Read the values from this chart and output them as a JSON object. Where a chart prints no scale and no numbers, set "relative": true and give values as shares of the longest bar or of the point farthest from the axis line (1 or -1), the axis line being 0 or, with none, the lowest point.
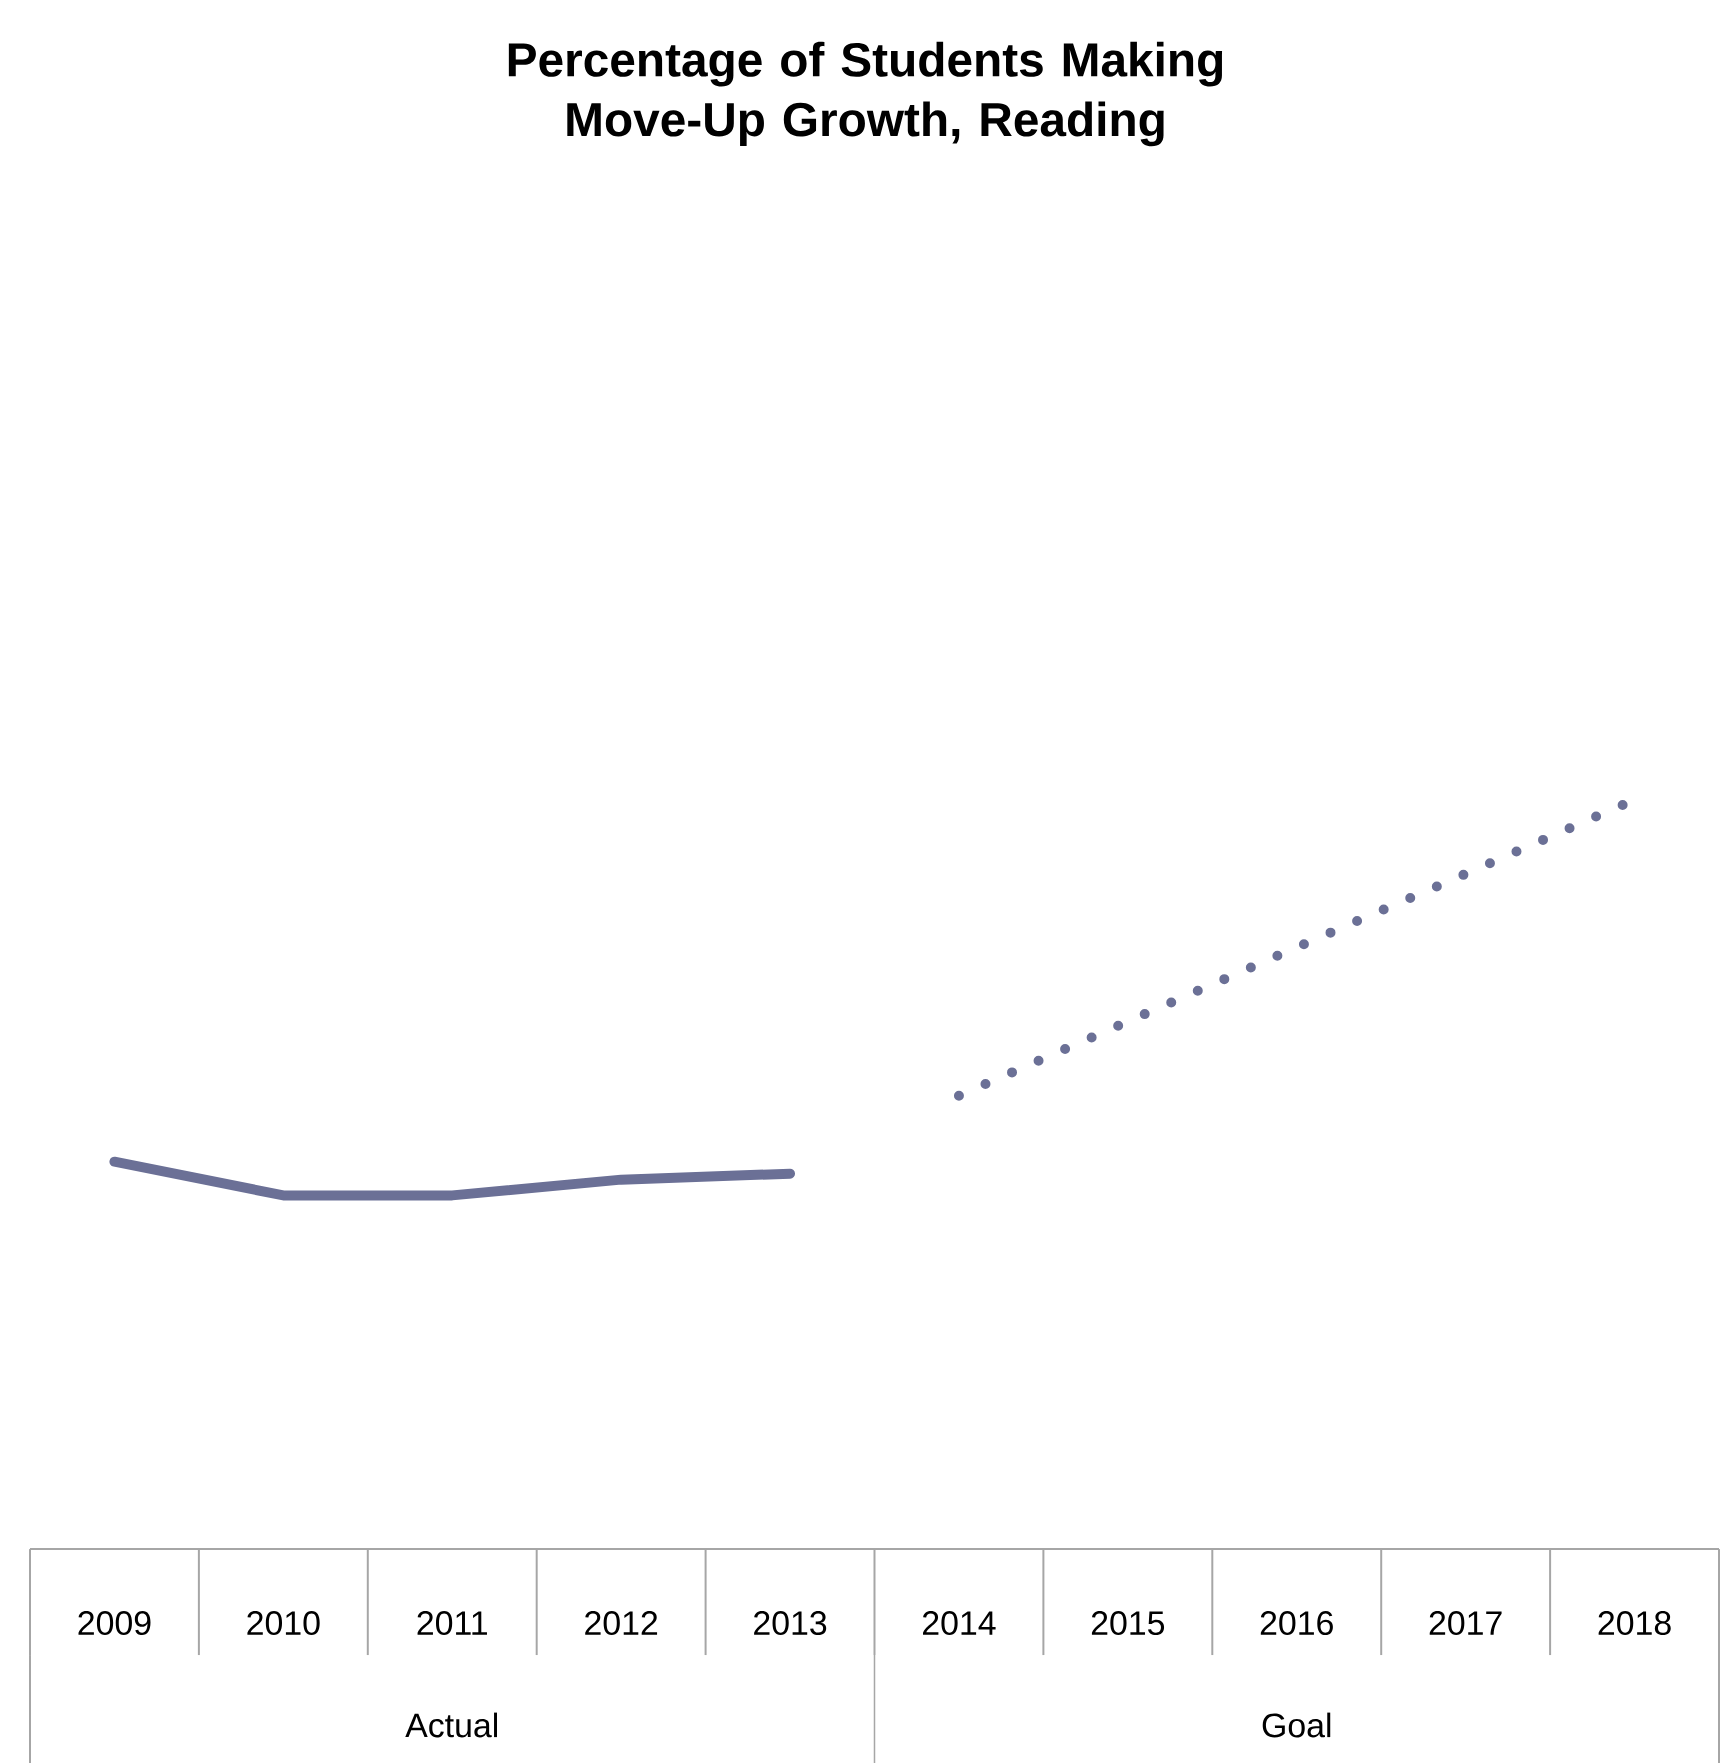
{
  "chart_data": {
    "type": "line",
    "title": "Percentage of Students Making Move-Up Growth, Reading",
    "relative": true,
    "categories": [
      "2009",
      "2010",
      "2011",
      "2012",
      "2013",
      "2014",
      "2015",
      "2016",
      "2017",
      "2018"
    ],
    "series": [
      {
        "color": "#6b7096",
        "line_style": "solid",
        "values": [
          0.517,
          0.472,
          0.472,
          0.493,
          0.501,
          null,
          null,
          null,
          null,
          null
        ]
      },
      {
        "color": "#6b7096",
        "line_style": "dotted",
        "values": [
          null,
          null,
          null,
          null,
          null,
          0.605,
          0.704,
          0.803,
          0.901,
          1
        ]
      }
    ],
    "annotations": [
      "Actual",
      "Goal"
    ],
    "marker": "none"
  }
}
